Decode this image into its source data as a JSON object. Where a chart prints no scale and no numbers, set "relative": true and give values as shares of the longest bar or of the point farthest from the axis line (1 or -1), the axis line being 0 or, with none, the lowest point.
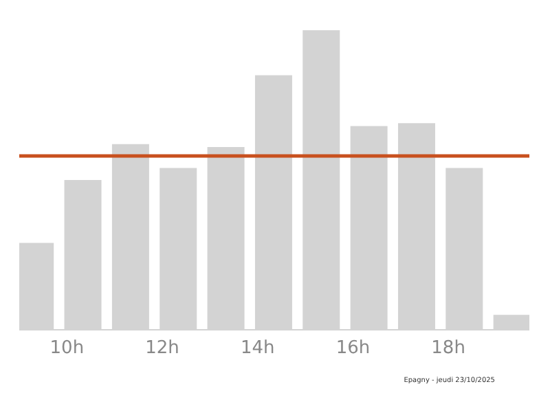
{
  "chart_data": {
    "type": "bar",
    "relative": true,
    "x": [
      9.33,
      10.33,
      11.33,
      12.33,
      13.33,
      14.33,
      15.33,
      16.33,
      17.33,
      18.33,
      19.33
    ],
    "values": [
      0.29,
      0.5,
      0.62,
      0.54,
      0.61,
      0.85,
      1,
      0.68,
      0.69,
      0.54,
      0.05
    ],
    "color": "#d3d3d3",
    "xlim": [
      9,
      19.7
    ],
    "xticks": [
      {
        "value": 10,
        "label": "10h"
      },
      {
        "value": 12,
        "label": "12h"
      },
      {
        "value": 14,
        "label": "14h"
      },
      {
        "value": 16,
        "label": "16h"
      },
      {
        "value": 18,
        "label": "18h"
      }
    ],
    "ref_lines": [
      {
        "axis": "y",
        "value": 0.58,
        "color": "#c8501e"
      }
    ],
    "annotations": [
      "Epagny - jeudi 23/10/2025"
    ],
    "grid": false,
    "legend": false
  }
}
